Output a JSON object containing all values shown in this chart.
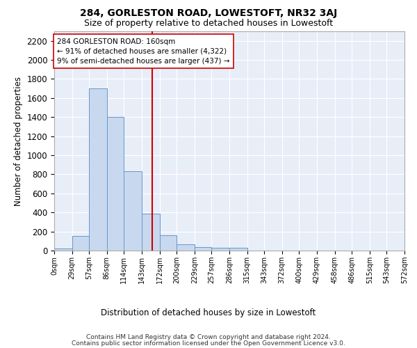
{
  "title": "284, GORLESTON ROAD, LOWESTOFT, NR32 3AJ",
  "subtitle": "Size of property relative to detached houses in Lowestoft",
  "xlabel": "Distribution of detached houses by size in Lowestoft",
  "ylabel": "Number of detached properties",
  "bar_color": "#c8d8ee",
  "bar_edge_color": "#6699cc",
  "background_color": "#e8eef8",
  "grid_color": "#ffffff",
  "bin_edges": [
    0,
    29,
    57,
    86,
    114,
    143,
    172,
    200,
    229,
    257,
    286,
    315,
    343,
    372,
    400,
    429,
    458,
    486,
    515,
    543,
    572
  ],
  "bin_labels": [
    "0sqm",
    "29sqm",
    "57sqm",
    "86sqm",
    "114sqm",
    "143sqm",
    "172sqm",
    "200sqm",
    "229sqm",
    "257sqm",
    "286sqm",
    "315sqm",
    "343sqm",
    "372sqm",
    "400sqm",
    "429sqm",
    "458sqm",
    "486sqm",
    "515sqm",
    "543sqm",
    "572sqm"
  ],
  "bar_heights": [
    20,
    155,
    1700,
    1400,
    830,
    390,
    160,
    65,
    40,
    30,
    30,
    0,
    0,
    0,
    0,
    0,
    0,
    0,
    0,
    0
  ],
  "ylim": [
    0,
    2300
  ],
  "yticks": [
    0,
    200,
    400,
    600,
    800,
    1000,
    1200,
    1400,
    1600,
    1800,
    2000,
    2200
  ],
  "property_size": 160,
  "annotation_title": "284 GORLESTON ROAD: 160sqm",
  "annotation_line1": "← 91% of detached houses are smaller (4,322)",
  "annotation_line2": "9% of semi-detached houses are larger (437) →",
  "vline_x": 160,
  "vline_color": "#cc0000",
  "footer1": "Contains HM Land Registry data © Crown copyright and database right 2024.",
  "footer2": "Contains public sector information licensed under the Open Government Licence v3.0."
}
